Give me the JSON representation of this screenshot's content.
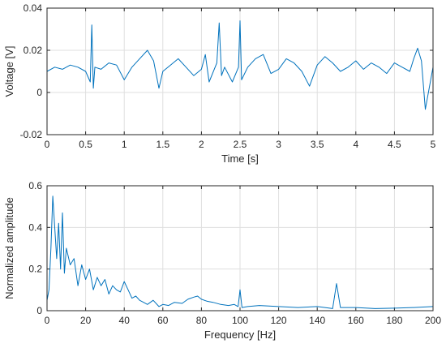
{
  "line_color": "#0072BD",
  "chart_data": [
    {
      "type": "line",
      "xlabel": "Time [s]",
      "ylabel": "Voltage [V]",
      "xlim": [
        0,
        5
      ],
      "ylim": [
        -0.02,
        0.04
      ],
      "xticks": [
        0,
        0.5,
        1,
        1.5,
        2,
        2.5,
        3,
        3.5,
        4,
        4.5,
        5
      ],
      "xticklabels": [
        "0",
        "0.5",
        "1",
        "1.5",
        "2",
        "2.5",
        "3",
        "3.5",
        "4",
        "4.5",
        "5"
      ],
      "yticks": [
        -0.02,
        0,
        0.02,
        0.04
      ],
      "yticklabels": [
        "-0.02",
        "0",
        "0.02",
        "0.04"
      ],
      "grid": true,
      "series": [
        {
          "x": [
            0,
            0.1,
            0.2,
            0.3,
            0.4,
            0.5,
            0.56,
            0.58,
            0.6,
            0.62,
            0.7,
            0.8,
            0.9,
            1.0,
            1.1,
            1.2,
            1.3,
            1.38,
            1.45,
            1.5,
            1.6,
            1.7,
            1.8,
            1.9,
            2.0,
            2.05,
            2.1,
            2.2,
            2.23,
            2.26,
            2.3,
            2.4,
            2.48,
            2.5,
            2.52,
            2.6,
            2.7,
            2.8,
            2.9,
            3.0,
            3.1,
            3.2,
            3.3,
            3.4,
            3.5,
            3.6,
            3.7,
            3.8,
            3.9,
            4.0,
            4.1,
            4.2,
            4.3,
            4.4,
            4.5,
            4.55,
            4.6,
            4.7,
            4.75,
            4.8,
            4.85,
            4.9,
            5.0
          ],
          "y": [
            0.01,
            0.012,
            0.011,
            0.013,
            0.012,
            0.01,
            0.005,
            0.032,
            0.002,
            0.012,
            0.011,
            0.014,
            0.013,
            0.006,
            0.012,
            0.016,
            0.02,
            0.015,
            0.002,
            0.01,
            0.013,
            0.016,
            0.012,
            0.008,
            0.011,
            0.018,
            0.005,
            0.014,
            0.033,
            0.008,
            0.012,
            0.005,
            0.012,
            0.034,
            0.006,
            0.012,
            0.016,
            0.018,
            0.009,
            0.011,
            0.016,
            0.014,
            0.01,
            0.003,
            0.013,
            0.017,
            0.014,
            0.01,
            0.012,
            0.015,
            0.011,
            0.014,
            0.012,
            0.009,
            0.014,
            0.013,
            0.012,
            0.01,
            0.016,
            0.021,
            0.015,
            -0.008,
            0.012
          ]
        }
      ]
    },
    {
      "type": "line",
      "xlabel": "Frequency [Hz]",
      "ylabel": "Normalized amplitude",
      "xlim": [
        0,
        200
      ],
      "ylim": [
        0,
        0.6
      ],
      "xticks": [
        0,
        20,
        40,
        60,
        80,
        100,
        120,
        140,
        160,
        180,
        200
      ],
      "xticklabels": [
        "0",
        "20",
        "40",
        "60",
        "80",
        "100",
        "120",
        "140",
        "160",
        "180",
        "200"
      ],
      "yticks": [
        0,
        0.2,
        0.4,
        0.6
      ],
      "yticklabels": [
        "0",
        "0.2",
        "0.4",
        "0.6"
      ],
      "grid": true,
      "series": [
        {
          "x": [
            0,
            1,
            2,
            3,
            4,
            5,
            6,
            7,
            8,
            9,
            10,
            12,
            14,
            16,
            18,
            20,
            22,
            24,
            26,
            28,
            30,
            32,
            34,
            36,
            38,
            40,
            42,
            44,
            46,
            48,
            50,
            52,
            55,
            58,
            60,
            63,
            66,
            70,
            73,
            76,
            78,
            80,
            83,
            86,
            90,
            94,
            97,
            99,
            100,
            101,
            104,
            110,
            120,
            130,
            140,
            148,
            150,
            152,
            160,
            170,
            180,
            190,
            200
          ],
          "y": [
            0.05,
            0.1,
            0.3,
            0.55,
            0.4,
            0.25,
            0.42,
            0.2,
            0.47,
            0.18,
            0.3,
            0.22,
            0.25,
            0.12,
            0.22,
            0.15,
            0.2,
            0.1,
            0.16,
            0.12,
            0.15,
            0.08,
            0.12,
            0.1,
            0.09,
            0.14,
            0.1,
            0.06,
            0.07,
            0.05,
            0.04,
            0.03,
            0.05,
            0.02,
            0.03,
            0.025,
            0.04,
            0.035,
            0.055,
            0.065,
            0.07,
            0.055,
            0.045,
            0.04,
            0.03,
            0.025,
            0.03,
            0.02,
            0.1,
            0.015,
            0.02,
            0.025,
            0.02,
            0.015,
            0.02,
            0.01,
            0.13,
            0.015,
            0.015,
            0.01,
            0.012,
            0.015,
            0.02
          ]
        }
      ]
    }
  ]
}
